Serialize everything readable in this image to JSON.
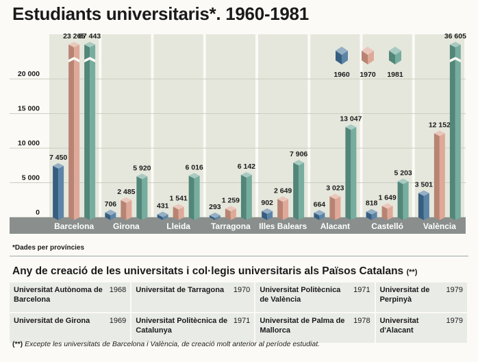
{
  "title": "Estudiants universitaris*. 1960-1981",
  "note": "*Dades per províncies",
  "chart_data": {
    "type": "bar",
    "categories": [
      "Barcelona",
      "Girona",
      "Lleida",
      "Tarragona",
      "Illes Balears",
      "Alacant",
      "Castelló",
      "València"
    ],
    "series": [
      {
        "name": "1960",
        "values": [
          7450,
          706,
          431,
          293,
          902,
          664,
          818,
          3501
        ],
        "labels": [
          "7 450",
          "706",
          "431",
          "293",
          "902",
          "664",
          "818",
          "3 501"
        ]
      },
      {
        "name": "1970",
        "values": [
          23265,
          2485,
          1541,
          1259,
          2649,
          3023,
          1649,
          12152
        ],
        "labels": [
          "23 265",
          "2 485",
          "1 541",
          "1 259",
          "2 649",
          "3 023",
          "1 649",
          "12 152"
        ]
      },
      {
        "name": "1981",
        "values": [
          87443,
          5920,
          6016,
          6142,
          7906,
          13047,
          5203,
          36605
        ],
        "labels": [
          "87 443",
          "5 920",
          "6 016",
          "6 142",
          "7 906",
          "13 047",
          "5 203",
          "36 605"
        ]
      }
    ],
    "yticks": [
      0,
      5000,
      10000,
      15000,
      20000
    ],
    "ytick_labels": [
      "0",
      "5 000",
      "10 000",
      "15 000",
      "20 000"
    ],
    "ylim": [
      0,
      22000
    ],
    "axis_break": true,
    "legend_position": "top-right",
    "colors": {
      "1960": "#3f6e96",
      "1970": "#d89a86",
      "1981": "#5f9e8e",
      "panel": "#e5e7dc",
      "base": "#8a8f8e"
    }
  },
  "table": {
    "title": "Any de creació de les universitats i col·legis universitaris als Països Catalans",
    "marker": "(**)",
    "rows": [
      [
        {
          "name": "Universitat Autònoma de Barcelona",
          "year": "1968"
        },
        {
          "name": "Universitat de Tarragona",
          "year": "1970"
        },
        {
          "name": "Universitat Politècnica de València",
          "year": "1971"
        },
        {
          "name": "Universitat de Perpinyà",
          "year": "1979"
        }
      ],
      [
        {
          "name": "Universitat de Girona",
          "year": "1969"
        },
        {
          "name": "Universitat Politècnica de Catalunya",
          "year": "1971"
        },
        {
          "name": "Universitat de Palma de Mallorca",
          "year": "1978"
        },
        {
          "name": "Universitat d'Alacant",
          "year": "1979"
        }
      ]
    ],
    "footnote_marker": "(**)",
    "footnote": "Excepte les universitats de Barcelona i València, de creació molt anterior al període estudiat."
  }
}
